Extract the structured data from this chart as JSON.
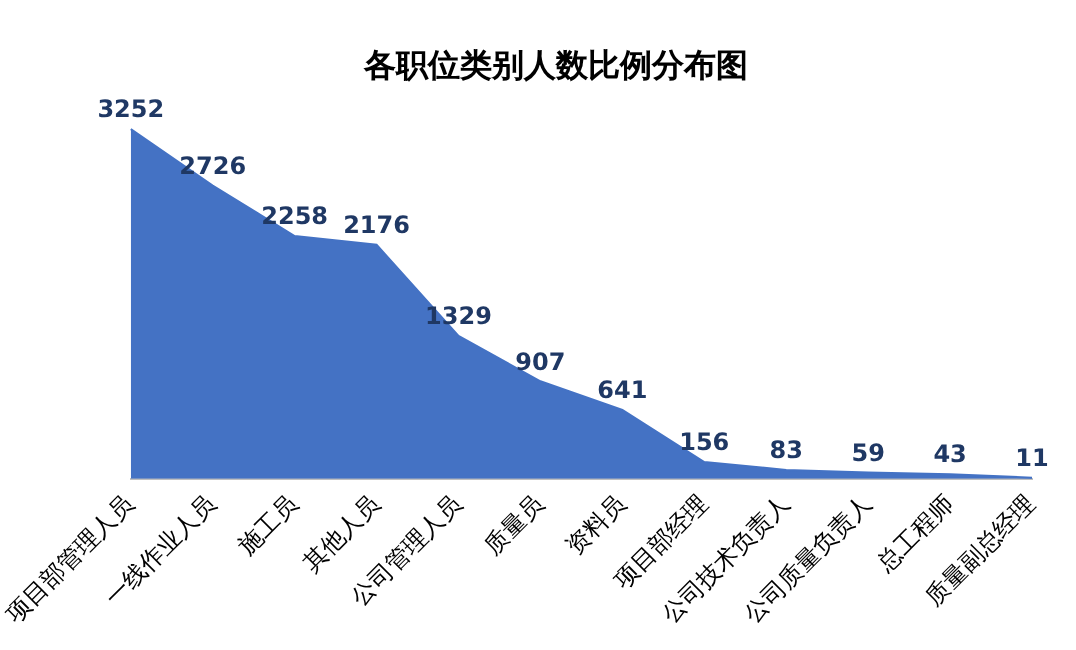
{
  "chart_data": {
    "type": "area",
    "title": "各职位类别人数比例分布图",
    "categories": [
      "项目部管理人员",
      "一线作业人员",
      "施工员",
      "其他人员",
      "公司管理人员",
      "质量员",
      "资料员",
      "项目部经理",
      "公司技术负责人",
      "公司质量负责人",
      "总工程师",
      "质量副总经理"
    ],
    "values": [
      3252,
      2726,
      2258,
      2176,
      1329,
      907,
      641,
      156,
      83,
      59,
      43,
      11
    ],
    "color": "#4472c4",
    "data_labels": true,
    "grid": false,
    "legend": false
  }
}
